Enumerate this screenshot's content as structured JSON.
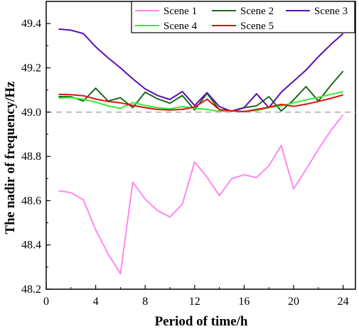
{
  "chart_data": {
    "type": "line",
    "xlabel": "Period of time/h",
    "ylabel": "The nadir of frequency/Hz",
    "xlim": [
      0,
      25
    ],
    "ylim": [
      48.2,
      49.5
    ],
    "xticks": [
      0,
      4,
      8,
      12,
      16,
      20,
      24
    ],
    "yticks": [
      48.2,
      48.4,
      48.6,
      48.8,
      49.0,
      49.2,
      49.4
    ],
    "x": [
      1,
      2,
      3,
      4,
      5,
      6,
      7,
      8,
      9,
      10,
      11,
      12,
      13,
      14,
      15,
      16,
      17,
      18,
      19,
      20,
      21,
      22,
      23,
      24
    ],
    "reference_line": {
      "y": 49.0,
      "color": "#b0b0b0",
      "style": "dashed"
    },
    "legend_position": "top-right",
    "series": [
      {
        "name": "Scene 1",
        "color": "#ff88ee",
        "values": [
          48.645,
          48.636,
          48.604,
          48.468,
          48.36,
          48.27,
          48.683,
          48.607,
          48.555,
          48.526,
          48.584,
          48.775,
          48.706,
          48.623,
          48.699,
          48.717,
          48.704,
          48.758,
          48.849,
          48.653,
          48.741,
          48.832,
          48.916,
          48.988
        ]
      },
      {
        "name": "Scene 2",
        "color": "#1a6b1a",
        "values": [
          49.07,
          49.07,
          49.05,
          49.108,
          49.05,
          49.065,
          49.02,
          49.09,
          49.06,
          49.04,
          49.075,
          49.01,
          49.085,
          49.01,
          49.005,
          49.02,
          49.028,
          49.07,
          49.005,
          49.055,
          49.115,
          49.05,
          49.12,
          49.185
        ]
      },
      {
        "name": "Scene 3",
        "color": "#5a0fb0",
        "values": [
          49.375,
          49.37,
          49.355,
          49.295,
          49.245,
          49.2,
          49.15,
          49.105,
          49.075,
          49.057,
          49.093,
          49.03,
          49.088,
          49.025,
          49.003,
          49.02,
          49.083,
          49.02,
          49.09,
          49.14,
          49.19,
          49.25,
          49.305,
          49.355
        ]
      },
      {
        "name": "Scene 4",
        "color": "#33ee33",
        "values": [
          49.063,
          49.066,
          49.058,
          49.045,
          49.028,
          49.017,
          49.043,
          49.03,
          49.02,
          49.015,
          49.025,
          49.018,
          49.012,
          49.003,
          49.005,
          49.003,
          49.007,
          49.02,
          49.028,
          49.042,
          49.055,
          49.067,
          49.08,
          49.092
        ]
      },
      {
        "name": "Scene 5",
        "color": "#dd1111",
        "values": [
          49.08,
          49.079,
          49.074,
          49.059,
          49.048,
          49.042,
          49.03,
          49.02,
          49.012,
          49.01,
          49.012,
          49.023,
          49.058,
          49.011,
          49.006,
          49.002,
          49.012,
          49.022,
          49.035,
          49.026,
          49.036,
          49.048,
          49.062,
          49.078
        ]
      }
    ]
  }
}
